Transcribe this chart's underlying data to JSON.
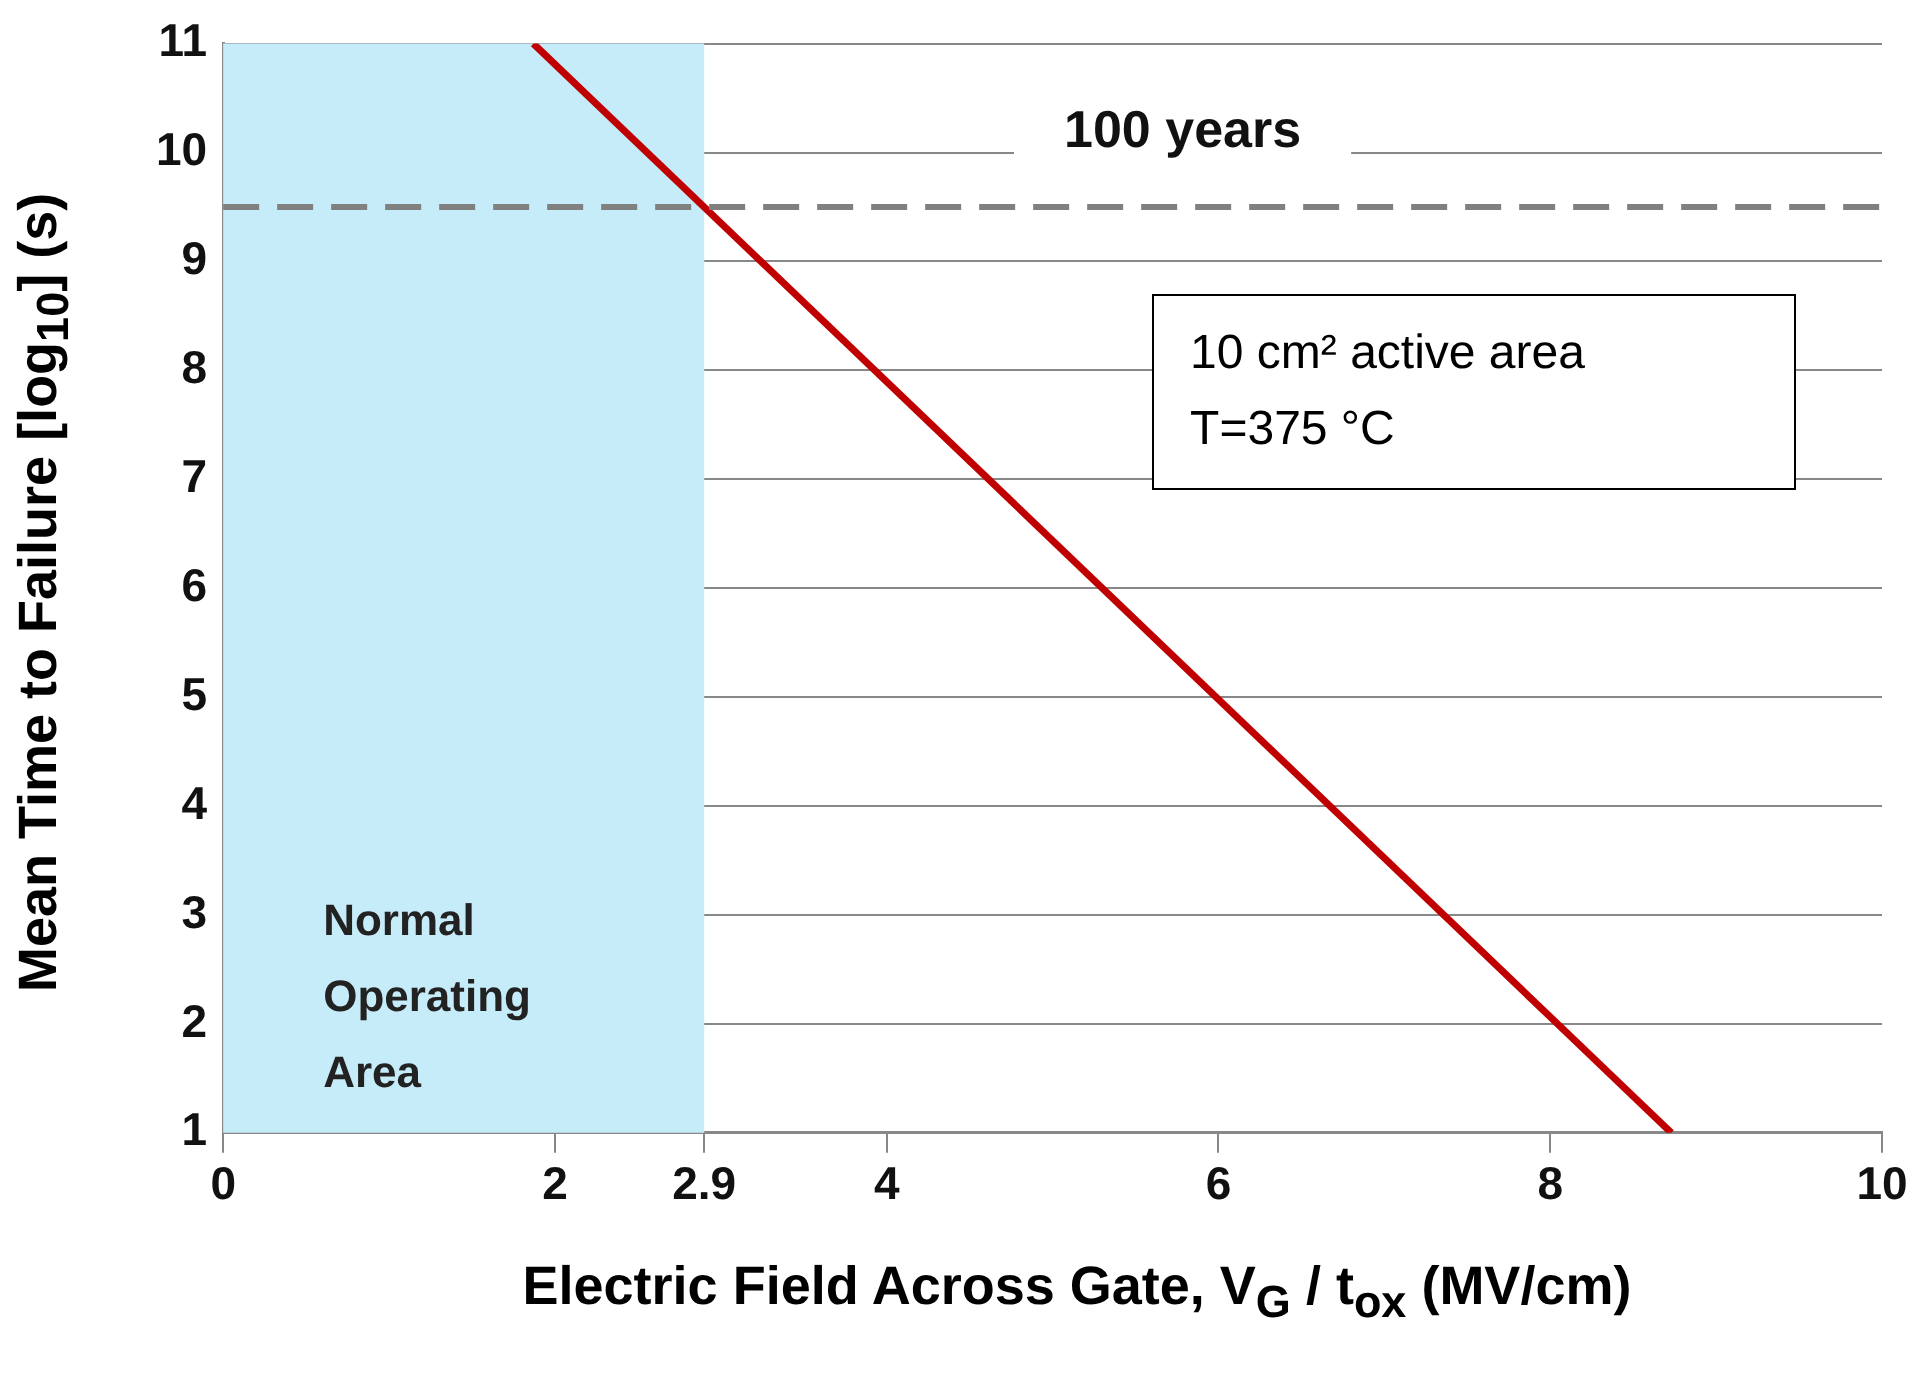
{
  "chart_data": {
    "type": "line",
    "xlabel": "Electric Field Across Gate, V$_{G}$ / t$_{ox}$ (MV/cm)",
    "ylabel": "Mean Time to Failure [log$_{10}$] (s)",
    "series": [
      {
        "color": "#c00000",
        "x": [
          1.87,
          8.73
        ],
        "values": [
          11,
          1
        ]
      }
    ],
    "xlim": [
      0,
      10
    ],
    "ylim": [
      1,
      11
    ],
    "xticks": [
      0,
      2,
      2.9,
      4,
      6,
      8,
      10
    ],
    "yticks": [
      1,
      2,
      3,
      4,
      5,
      6,
      7,
      8,
      9,
      10,
      11
    ],
    "grid": "y",
    "legend": false,
    "marker": "none",
    "line_style": "solid",
    "ref_lines": [
      {
        "axis": "y",
        "value": 9.5,
        "label": "100 years",
        "color": "#808080",
        "line_style": "dashed"
      }
    ],
    "bands": [
      {
        "axis": "x",
        "from": 0,
        "to": 2.9,
        "label": "Normal Operating Area",
        "color": "#c6ecf9"
      }
    ],
    "annotations": [
      "10 cm² active area",
      "T=375 °C"
    ]
  }
}
